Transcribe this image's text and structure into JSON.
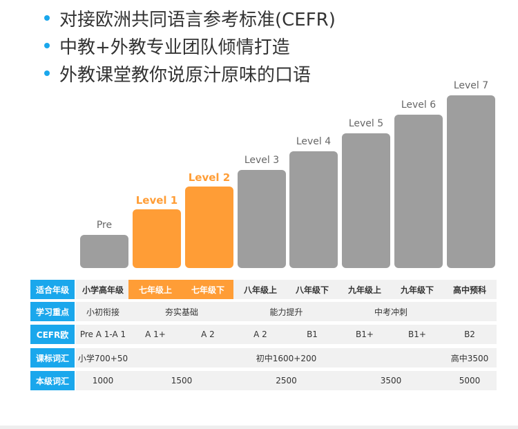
{
  "bullets": [
    "对接欧洲共同语言参考标准(CEFR)",
    "中教+外教专业团队倾情打造",
    "外教课堂教你说原汁原味的口语"
  ],
  "levels": [
    {
      "label": "Pre",
      "highlight": false,
      "height_fraction": 0.19
    },
    {
      "label": "Level 1",
      "highlight": true,
      "height_fraction": 0.34
    },
    {
      "label": "Level 2",
      "highlight": true,
      "height_fraction": 0.47
    },
    {
      "label": "Level 3",
      "highlight": false,
      "height_fraction": 0.566
    },
    {
      "label": "Level 4",
      "highlight": false,
      "height_fraction": 0.674
    },
    {
      "label": "Level 5",
      "highlight": false,
      "height_fraction": 0.78
    },
    {
      "label": "Level 6",
      "highlight": false,
      "height_fraction": 0.887
    },
    {
      "label": "Level 7",
      "highlight": false,
      "height_fraction": 1.0
    }
  ],
  "table": {
    "rows": [
      {
        "header": "适合年级",
        "cells": [
          {
            "text": "小学高年级",
            "span": 1,
            "style": "bold"
          },
          {
            "text": "七年级上",
            "span": 1,
            "style": "hl"
          },
          {
            "text": "七年级下",
            "span": 1,
            "style": "hl"
          },
          {
            "text": "八年级上",
            "span": 1,
            "style": "bold"
          },
          {
            "text": "八年级下",
            "span": 1,
            "style": "bold"
          },
          {
            "text": "九年级上",
            "span": 1,
            "style": "bold"
          },
          {
            "text": "九年级下",
            "span": 1,
            "style": "bold"
          },
          {
            "text": "高中预科",
            "span": 1,
            "style": "bold"
          }
        ]
      },
      {
        "header": "学习重点",
        "cells": [
          {
            "text": "小初衔接",
            "span": 1,
            "style": ""
          },
          {
            "text": "夯实基础",
            "span": 2,
            "style": ""
          },
          {
            "text": "能力提升",
            "span": 2,
            "style": ""
          },
          {
            "text": "中考冲刺",
            "span": 2,
            "style": ""
          },
          {
            "text": "",
            "span": 1,
            "style": ""
          }
        ]
      },
      {
        "header": "CEFR欧",
        "cells": [
          {
            "text": "Pre A 1-A 1",
            "span": 1,
            "style": ""
          },
          {
            "text": "A 1+",
            "span": 1,
            "style": ""
          },
          {
            "text": "A 2",
            "span": 1,
            "style": ""
          },
          {
            "text": "A 2",
            "span": 1,
            "style": ""
          },
          {
            "text": "B1",
            "span": 1,
            "style": ""
          },
          {
            "text": "B1+",
            "span": 1,
            "style": ""
          },
          {
            "text": "B1+",
            "span": 1,
            "style": ""
          },
          {
            "text": "B2",
            "span": 1,
            "style": ""
          }
        ]
      },
      {
        "header": "课标词汇",
        "cells": [
          {
            "text": "小学700+50",
            "span": 1,
            "style": ""
          },
          {
            "text": "初中1600+200",
            "span": 6,
            "style": ""
          },
          {
            "text": "高中3500",
            "span": 1,
            "style": ""
          }
        ]
      },
      {
        "header": "本级词汇",
        "cells": [
          {
            "text": "1000",
            "span": 1,
            "style": ""
          },
          {
            "text": "1500",
            "span": 2,
            "style": ""
          },
          {
            "text": "2500",
            "span": 2,
            "style": ""
          },
          {
            "text": "3500",
            "span": 2,
            "style": ""
          },
          {
            "text": "5000",
            "span": 1,
            "style": ""
          }
        ]
      }
    ]
  },
  "colors": {
    "accent_blue": "#1aa7ec",
    "highlight_orange": "#ff9d36",
    "bar_gray": "#9e9e9e",
    "cell_bg": "#f1f1f1"
  }
}
